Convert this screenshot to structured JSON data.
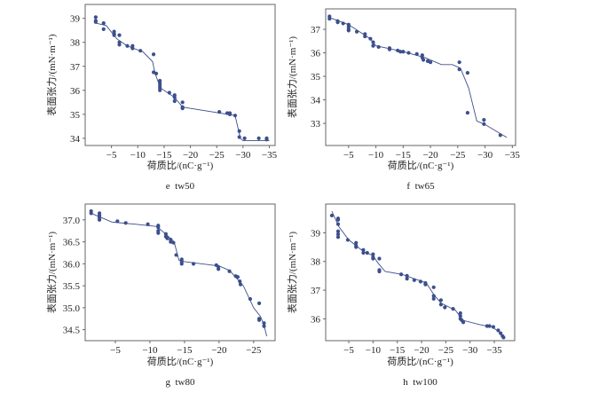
{
  "chart_data": [
    {
      "type": "scatter",
      "caption": "e  tw50",
      "xlabel": "荷质比/(nC·g⁻¹)",
      "ylabel": "表面张力/(mN·m⁻¹)",
      "xlim": [
        0,
        -36.1
      ],
      "ylim": [
        33.7,
        39.58
      ],
      "xticks": [
        -5,
        -10,
        -15,
        -20,
        -25,
        -30,
        -35
      ],
      "yticks": [
        34,
        35,
        36,
        37,
        38,
        39
      ],
      "ytick_decimals": 0,
      "grid": false,
      "marker_color": "#3c4f8c",
      "line_color": "#3c4f8c",
      "points": [
        [
          -2,
          39.05
        ],
        [
          -2,
          38.9
        ],
        [
          -2,
          38.85
        ],
        [
          -3.5,
          38.8
        ],
        [
          -3.5,
          38.55
        ],
        [
          -5.5,
          38.45
        ],
        [
          -5.5,
          38.35
        ],
        [
          -5.5,
          38.3
        ],
        [
          -6.5,
          38.3
        ],
        [
          -6.5,
          38.0
        ],
        [
          -6.5,
          37.9
        ],
        [
          -8,
          37.85
        ],
        [
          -9,
          37.85
        ],
        [
          -9,
          37.75
        ],
        [
          -10.5,
          37.65
        ],
        [
          -13,
          37.5
        ],
        [
          -13,
          36.75
        ],
        [
          -13.5,
          36.7
        ],
        [
          -14.2,
          36.4
        ],
        [
          -14.2,
          36.3
        ],
        [
          -14.2,
          36.2
        ],
        [
          -14.2,
          36.1
        ],
        [
          -14.2,
          36.0
        ],
        [
          -16,
          35.9
        ],
        [
          -17,
          35.8
        ],
        [
          -17,
          35.7
        ],
        [
          -17,
          35.55
        ],
        [
          -18.5,
          35.5
        ],
        [
          -18.5,
          35.3
        ],
        [
          -18.5,
          35.25
        ],
        [
          -25.5,
          35.1
        ],
        [
          -27,
          35.05
        ],
        [
          -27.5,
          35.05
        ],
        [
          -27.5,
          35.0
        ],
        [
          -28.5,
          34.95
        ],
        [
          -29.3,
          34.3
        ],
        [
          -29.3,
          34.05
        ],
        [
          -30.3,
          34.0
        ],
        [
          -33,
          34.0
        ],
        [
          -34.5,
          34.0
        ],
        [
          -34.5,
          33.95
        ]
      ],
      "fit_line": [
        [
          -2,
          38.8
        ],
        [
          -4,
          38.7
        ],
        [
          -6,
          38.15
        ],
        [
          -8,
          37.85
        ],
        [
          -11,
          37.6
        ],
        [
          -12.8,
          37.2
        ],
        [
          -13.3,
          36.7
        ],
        [
          -14.3,
          36.1
        ],
        [
          -17,
          35.7
        ],
        [
          -18.5,
          35.3
        ],
        [
          -28.5,
          34.95
        ],
        [
          -29.5,
          34.0
        ],
        [
          -30,
          33.9
        ],
        [
          -35,
          33.9
        ]
      ]
    },
    {
      "type": "scatter",
      "caption": "f  tw65",
      "xlabel": "荷质比/(nC·g⁻¹)",
      "ylabel": "表面张力/(mN·m⁻¹)",
      "xlim": [
        -0.8,
        -35.6
      ],
      "ylim": [
        32.06,
        37.87
      ],
      "xticks": [
        -5,
        -10,
        -15,
        -20,
        -25,
        -30,
        -35
      ],
      "yticks": [
        33,
        34,
        35,
        36,
        37
      ],
      "ytick_decimals": 0,
      "grid": false,
      "marker_color": "#3c4f8c",
      "line_color": "#3c4f8c",
      "points": [
        [
          -1.5,
          37.55
        ],
        [
          -1.5,
          37.45
        ],
        [
          -3,
          37.35
        ],
        [
          -3,
          37.3
        ],
        [
          -4,
          37.25
        ],
        [
          -5,
          37.2
        ],
        [
          -5,
          37.1
        ],
        [
          -5,
          37.0
        ],
        [
          -5,
          36.95
        ],
        [
          -6.5,
          36.9
        ],
        [
          -8,
          36.8
        ],
        [
          -8,
          36.7
        ],
        [
          -9,
          36.6
        ],
        [
          -9.5,
          36.45
        ],
        [
          -9.5,
          36.3
        ],
        [
          -10.5,
          36.25
        ],
        [
          -12.5,
          36.2
        ],
        [
          -12.5,
          36.15
        ],
        [
          -14,
          36.1
        ],
        [
          -14.5,
          36.05
        ],
        [
          -15,
          36.05
        ],
        [
          -16,
          36.0
        ],
        [
          -17.5,
          35.95
        ],
        [
          -18.5,
          35.9
        ],
        [
          -18.5,
          35.8
        ],
        [
          -18.7,
          35.7
        ],
        [
          -19.5,
          35.65
        ],
        [
          -20,
          35.6
        ],
        [
          -25.3,
          35.6
        ],
        [
          -25.3,
          35.3
        ],
        [
          -26.8,
          35.15
        ],
        [
          -26.8,
          33.45
        ],
        [
          -29.8,
          33.15
        ],
        [
          -29.8,
          32.97
        ],
        [
          -32.8,
          32.5
        ]
      ],
      "fit_line": [
        [
          -1.5,
          37.5
        ],
        [
          -5,
          37.2
        ],
        [
          -9,
          36.6
        ],
        [
          -10,
          36.3
        ],
        [
          -15,
          36.05
        ],
        [
          -19,
          35.8
        ],
        [
          -22,
          35.5
        ],
        [
          -24,
          35.5
        ],
        [
          -25.5,
          35.35
        ],
        [
          -27,
          34.5
        ],
        [
          -28.5,
          33.1
        ],
        [
          -30,
          32.95
        ],
        [
          -34,
          32.4
        ]
      ]
    },
    {
      "type": "scatter",
      "caption": "g  tw80",
      "xlabel": "荷质比/(nC·g⁻¹)",
      "ylabel": "表面张力/(mN·m⁻¹)",
      "xlim": [
        -0.64,
        -28.1
      ],
      "ylim": [
        34.25,
        37.36
      ],
      "xticks": [
        -5,
        -10,
        -15,
        -20,
        -25
      ],
      "yticks": [
        34.5,
        35.0,
        35.5,
        36.0,
        36.5,
        37.0
      ],
      "ytick_decimals": 1,
      "grid": false,
      "marker_color": "#3c4f8c",
      "line_color": "#3c4f8c",
      "points": [
        [
          -1.5,
          37.2
        ],
        [
          -1.5,
          37.15
        ],
        [
          -2.7,
          37.15
        ],
        [
          -2.7,
          37.1
        ],
        [
          -2.7,
          37.05
        ],
        [
          -2.7,
          37.0
        ],
        [
          -5.3,
          36.97
        ],
        [
          -6.5,
          36.93
        ],
        [
          -9.7,
          36.9
        ],
        [
          -11.2,
          36.87
        ],
        [
          -11.2,
          36.83
        ],
        [
          -11.2,
          36.75
        ],
        [
          -11.2,
          36.7
        ],
        [
          -12.3,
          36.68
        ],
        [
          -12.3,
          36.62
        ],
        [
          -12.5,
          36.58
        ],
        [
          -13,
          36.55
        ],
        [
          -13,
          36.5
        ],
        [
          -13.4,
          36.48
        ],
        [
          -13.8,
          36.2
        ],
        [
          -14.6,
          36.1
        ],
        [
          -14.6,
          36.05
        ],
        [
          -14.6,
          36.0
        ],
        [
          -16.3,
          36.0
        ],
        [
          -19.6,
          35.97
        ],
        [
          -19.9,
          35.93
        ],
        [
          -19.9,
          35.88
        ],
        [
          -21.5,
          35.83
        ],
        [
          -22.4,
          35.72
        ],
        [
          -22.7,
          35.7
        ],
        [
          -23,
          35.6
        ],
        [
          -23.1,
          35.53
        ],
        [
          -24.5,
          35.2
        ],
        [
          -25.8,
          35.1
        ],
        [
          -25.8,
          34.75
        ],
        [
          -25.8,
          34.72
        ],
        [
          -26.5,
          34.65
        ],
        [
          -26.5,
          34.58
        ]
      ],
      "fit_line": [
        [
          -1.5,
          37.15
        ],
        [
          -4.5,
          36.95
        ],
        [
          -8,
          36.9
        ],
        [
          -11,
          36.85
        ],
        [
          -12.5,
          36.65
        ],
        [
          -13.5,
          36.5
        ],
        [
          -14.2,
          36.08
        ],
        [
          -15,
          36.05
        ],
        [
          -20,
          35.95
        ],
        [
          -21.5,
          35.85
        ],
        [
          -23.5,
          35.5
        ],
        [
          -25,
          35.0
        ],
        [
          -26,
          34.8
        ],
        [
          -26.5,
          34.6
        ],
        [
          -26.9,
          34.35
        ]
      ]
    },
    {
      "type": "scatter",
      "caption": "h  tw100",
      "xlabel": "荷质比/(nC·g⁻¹)",
      "ylabel": "表面张力/(mN·m⁻¹)",
      "xlim": [
        -0.24,
        -39.2
      ],
      "ylim": [
        35.24,
        40.0
      ],
      "xticks": [
        -5,
        -10,
        -15,
        -20,
        -25,
        -30,
        -35
      ],
      "yticks": [
        36,
        37,
        38,
        39
      ],
      "ytick_decimals": 0,
      "grid": false,
      "marker_color": "#3c4f8c",
      "line_color": "#3c4f8c",
      "points": [
        [
          -1.5,
          39.6
        ],
        [
          -2.8,
          39.5
        ],
        [
          -2.8,
          39.45
        ],
        [
          -2.8,
          39.3
        ],
        [
          -2.8,
          39.05
        ],
        [
          -2.8,
          38.95
        ],
        [
          -2.8,
          38.85
        ],
        [
          -4.8,
          38.75
        ],
        [
          -6.5,
          38.65
        ],
        [
          -6.5,
          38.55
        ],
        [
          -6.5,
          38.5
        ],
        [
          -8,
          38.4
        ],
        [
          -8,
          38.3
        ],
        [
          -8.8,
          38.3
        ],
        [
          -10,
          38.25
        ],
        [
          -10,
          38.15
        ],
        [
          -10,
          38.1
        ],
        [
          -11.3,
          38.1
        ],
        [
          -11.3,
          37.7
        ],
        [
          -11.3,
          37.65
        ],
        [
          -15.8,
          37.55
        ],
        [
          -17,
          37.5
        ],
        [
          -17,
          37.4
        ],
        [
          -18.5,
          37.35
        ],
        [
          -19.8,
          37.3
        ],
        [
          -20.8,
          37.25
        ],
        [
          -20.8,
          37.2
        ],
        [
          -22.5,
          37.1
        ],
        [
          -22.5,
          36.8
        ],
        [
          -22.5,
          36.7
        ],
        [
          -24,
          36.65
        ],
        [
          -24,
          36.5
        ],
        [
          -24.8,
          36.4
        ],
        [
          -26.5,
          36.35
        ],
        [
          -28,
          36.2
        ],
        [
          -28,
          36.1
        ],
        [
          -28,
          36.0
        ],
        [
          -28.3,
          35.95
        ],
        [
          -28.6,
          35.88
        ],
        [
          -33.5,
          35.75
        ],
        [
          -34,
          35.75
        ],
        [
          -34.8,
          35.72
        ],
        [
          -35.8,
          35.6
        ],
        [
          -36.3,
          35.5
        ],
        [
          -36.7,
          35.4
        ],
        [
          -36.9,
          35.35
        ]
      ],
      "fit_line": [
        [
          -1.5,
          39.75
        ],
        [
          -3,
          39.2
        ],
        [
          -5,
          38.75
        ],
        [
          -8,
          38.35
        ],
        [
          -10,
          38.2
        ],
        [
          -11,
          37.95
        ],
        [
          -12.5,
          37.65
        ],
        [
          -16,
          37.55
        ],
        [
          -21,
          37.25
        ],
        [
          -22.5,
          36.85
        ],
        [
          -24,
          36.55
        ],
        [
          -27,
          36.3
        ],
        [
          -28.5,
          35.95
        ],
        [
          -32,
          35.8
        ],
        [
          -34.5,
          35.72
        ],
        [
          -36,
          35.55
        ],
        [
          -37,
          35.35
        ]
      ]
    }
  ]
}
